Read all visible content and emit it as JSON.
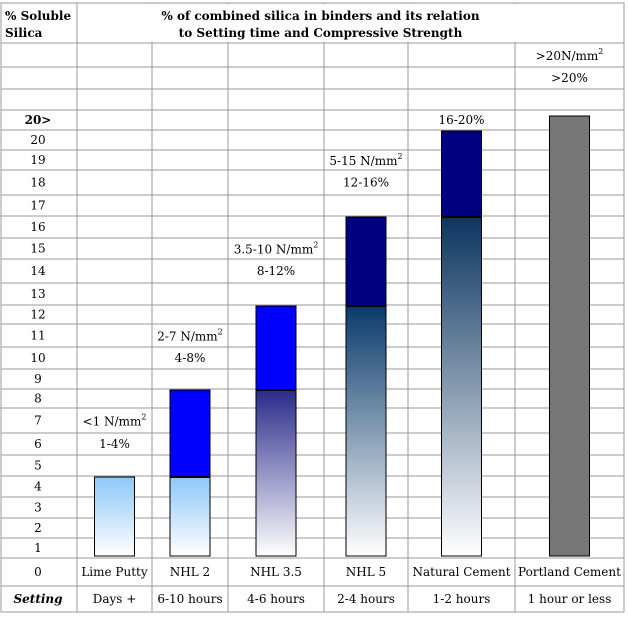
{
  "chart_data": {
    "type": "bar",
    "title_line1": "% of combined silica in binders and its relation",
    "title_line2": "to Setting time and Compressive Strength",
    "ylabel_line1": "% Soluble",
    "ylabel_line2": "Silica",
    "y_ticks": [
      "1",
      "2",
      "3",
      "4",
      "5",
      "6",
      "7",
      "8",
      "9",
      "10",
      "11",
      "12",
      "13",
      "14",
      "15",
      "16",
      "17",
      "18",
      "19",
      "20",
      "20>"
    ],
    "y_zero": "0",
    "setting_label": "Setting",
    "ylim": [
      0,
      21
    ],
    "categories": [
      "Lime Putty",
      "NHL 2",
      "NHL 3.5",
      "NHL 5",
      "Natural Cement",
      "Portland Cement"
    ],
    "setting_times": [
      "Days +",
      "6-10 hours",
      "4-6 hours",
      "2-4 hours",
      "1-2 hours",
      "1 hour or less"
    ],
    "strength_labels": [
      "<1 N/mm",
      "2-7 N/mm",
      "3.5-10 N/mm",
      "5-15 N/mm",
      "",
      ">20N/mm"
    ],
    "strength_unit_sup": "2",
    "silica_labels": [
      "1-4%",
      "4-8%",
      "8-12%",
      "12-16%",
      "16-20%",
      ">20%"
    ],
    "bar_max": [
      4,
      8,
      12,
      16,
      20,
      21
    ],
    "bar_light_max": [
      4,
      4,
      8,
      12,
      16,
      21
    ],
    "colors": {
      "grid": "#999999",
      "solid_blue": "#0000ff",
      "navy": "#000080",
      "sky": "#8ec8f8",
      "indigo": "#2a2a8a",
      "steel": "#0a3a6a",
      "teal_navy": "#0c3560",
      "grey": "#777777"
    }
  }
}
